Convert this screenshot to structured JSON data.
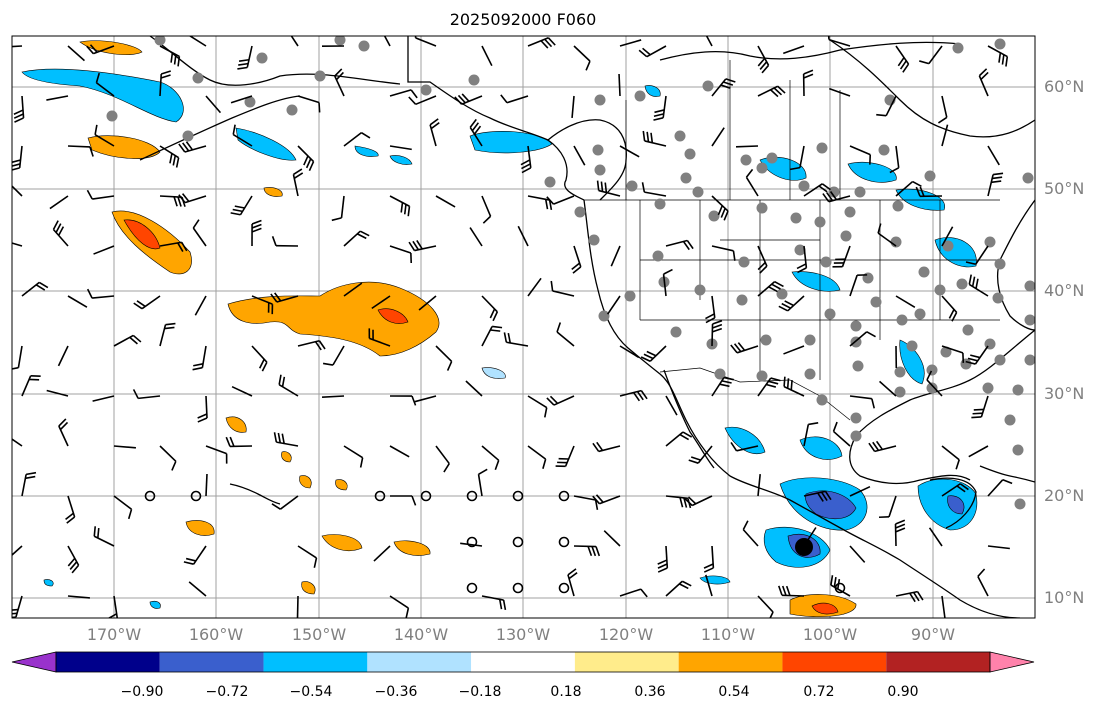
{
  "title": "2025092000 F060",
  "lat_labels": [
    "60°N",
    "50°N",
    "40°N",
    "30°N",
    "20°N",
    "10°N"
  ],
  "lon_labels": [
    "170°W",
    "160°W",
    "150°W",
    "140°W",
    "130°W",
    "120°W",
    "110°W",
    "100°W",
    "90°W"
  ],
  "colorbar": {
    "tick_labels": [
      "−0.90",
      "−0.72",
      "−0.54",
      "−0.36",
      "−0.18",
      "0.18",
      "0.36",
      "0.54",
      "0.72",
      "0.90"
    ],
    "colors": [
      "#9932cc",
      "#00008b",
      "#3a5fcd",
      "#00bfff",
      "#b0e2ff",
      "#ffffff",
      "#ffec8b",
      "#ffa500",
      "#ff4500",
      "#b22222",
      "#ff82ab"
    ]
  },
  "colors": {
    "gridline": "#a0a0a0",
    "coast": "#000000",
    "station_dot": "#808080",
    "barb": "#000000"
  }
}
